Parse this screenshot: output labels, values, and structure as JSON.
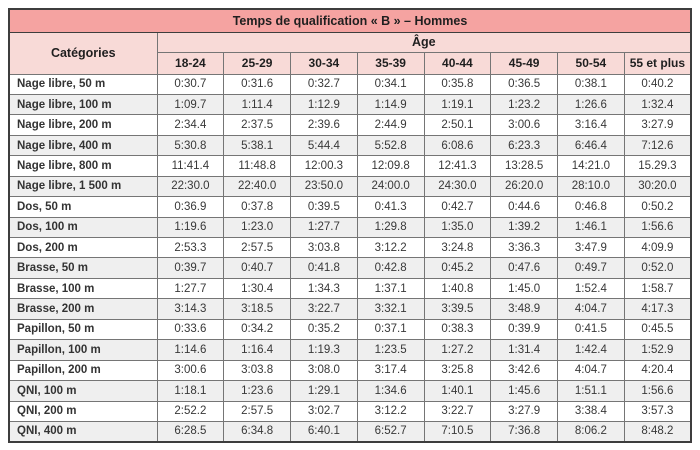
{
  "table": {
    "title": "Temps de qualification « B » – Hommes",
    "categories_header": "Catégories",
    "age_header": "Âge",
    "age_columns": [
      "18-24",
      "25-29",
      "30-34",
      "35-39",
      "40-44",
      "45-49",
      "50-54",
      "55 et plus"
    ],
    "rows": [
      {
        "label": "Nage libre, 50 m",
        "times": [
          "0:30.7",
          "0:31.6",
          "0:32.7",
          "0:34.1",
          "0:35.8",
          "0:36.5",
          "0:38.1",
          "0:40.2"
        ]
      },
      {
        "label": "Nage libre, 100 m",
        "times": [
          "1:09.7",
          "1:11.4",
          "1:12.9",
          "1:14.9",
          "1:19.1",
          "1:23.2",
          "1:26.6",
          "1:32.4"
        ]
      },
      {
        "label": "Nage libre, 200 m",
        "times": [
          "2:34.4",
          "2:37.5",
          "2:39.6",
          "2:44.9",
          "2:50.1",
          "3:00.6",
          "3:16.4",
          "3:27.9"
        ]
      },
      {
        "label": "Nage libre, 400 m",
        "times": [
          "5:30.8",
          "5:38.1",
          "5:44.4",
          "5:52.8",
          "6:08.6",
          "6:23.3",
          "6:46.4",
          "7:12.6"
        ]
      },
      {
        "label": "Nage libre, 800 m",
        "times": [
          "11:41.4",
          "11:48.8",
          "12:00.3",
          "12:09.8",
          "12:41.3",
          "13:28.5",
          "14:21.0",
          "15.29.3"
        ]
      },
      {
        "label": "Nage libre, 1 500 m",
        "times": [
          "22:30.0",
          "22:40.0",
          "23:50.0",
          "24:00.0",
          "24:30.0",
          "26:20.0",
          "28:10.0",
          "30:20.0"
        ]
      },
      {
        "label": "Dos, 50 m",
        "times": [
          "0:36.9",
          "0:37.8",
          "0:39.5",
          "0:41.3",
          "0:42.7",
          "0:44.6",
          "0:46.8",
          "0:50.2"
        ]
      },
      {
        "label": "Dos, 100 m",
        "times": [
          "1:19.6",
          "1:23.0",
          "1:27.7",
          "1:29.8",
          "1:35.0",
          "1:39.2",
          "1:46.1",
          "1:56.6"
        ]
      },
      {
        "label": "Dos, 200 m",
        "times": [
          "2:53.3",
          "2:57.5",
          "3:03.8",
          "3:12.2",
          "3:24.8",
          "3:36.3",
          "3:47.9",
          "4:09.9"
        ]
      },
      {
        "label": "Brasse, 50 m",
        "times": [
          "0:39.7",
          "0:40.7",
          "0:41.8",
          "0:42.8",
          "0:45.2",
          "0:47.6",
          "0:49.7",
          "0:52.0"
        ]
      },
      {
        "label": "Brasse, 100 m",
        "times": [
          "1:27.7",
          "1:30.4",
          "1:34.3",
          "1:37.1",
          "1:40.8",
          "1:45.0",
          "1:52.4",
          "1:58.7"
        ]
      },
      {
        "label": "Brasse, 200 m",
        "times": [
          "3:14.3",
          "3:18.5",
          "3:22.7",
          "3:32.1",
          "3:39.5",
          "3:48.9",
          "4:04.7",
          "4:17.3"
        ]
      },
      {
        "label": "Papillon, 50 m",
        "times": [
          "0:33.6",
          "0:34.2",
          "0:35.2",
          "0:37.1",
          "0:38.3",
          "0:39.9",
          "0:41.5",
          "0:45.5"
        ]
      },
      {
        "label": "Papillon, 100 m",
        "times": [
          "1:14.6",
          "1:16.4",
          "1:19.3",
          "1:23.5",
          "1:27.2",
          "1:31.4",
          "1:42.4",
          "1:52.9"
        ]
      },
      {
        "label": "Papillon, 200 m",
        "times": [
          "3:00.6",
          "3:03.8",
          "3:08.0",
          "3:17.4",
          "3:25.8",
          "3:42.6",
          "4:04.7",
          "4:20.4"
        ]
      },
      {
        "label": "QNI, 100 m",
        "times": [
          "1:18.1",
          "1:23.6",
          "1:29.1",
          "1:34.6",
          "1:40.1",
          "1:45.6",
          "1:51.1",
          "1:56.6"
        ]
      },
      {
        "label": "QNI, 200 m",
        "times": [
          "2:52.2",
          "2:57.5",
          "3:02.7",
          "3:12.2",
          "3:22.7",
          "3:27.9",
          "3:38.4",
          "3:57.3"
        ]
      },
      {
        "label": "QNI, 400 m",
        "times": [
          "6:28.5",
          "6:34.8",
          "6:40.1",
          "6:52.7",
          "7:10.5",
          "7:36.8",
          "8:06.2",
          "8:48.2"
        ]
      }
    ]
  },
  "colors": {
    "title_bg": "#f5a3a1",
    "header_bg": "#f8dad7",
    "stripe_bg": "#efefef",
    "row_bg": "#ffffff",
    "border_outer": "#3d3d3d",
    "border_inner": "#757575",
    "text": "#383838"
  }
}
